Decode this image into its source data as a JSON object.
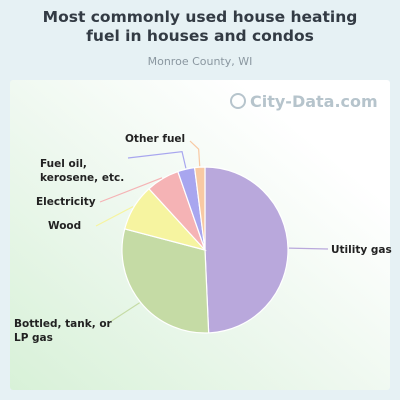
{
  "header": {
    "title_line1": "Most commonly used house heating",
    "title_line2": "fuel in houses and condos",
    "subtitle": "Monroe County, WI"
  },
  "watermark": "City-Data.com",
  "chart_data": {
    "type": "pie",
    "title": "Most commonly used house heating fuel in houses and condos",
    "subtitle": "Monroe County, WI",
    "slices": [
      {
        "label": "Utility gas",
        "value": 49.3,
        "color": "#b9a8dc"
      },
      {
        "label": "Bottled, tank, or LP gas",
        "value": 29.8,
        "color": "#c5dba5"
      },
      {
        "label": "Wood",
        "value": 9.1,
        "color": "#f6f4a0"
      },
      {
        "label": "Electricity",
        "value": 6.5,
        "color": "#f5b3b5"
      },
      {
        "label": "Fuel oil, kerosene, etc.",
        "value": 3.3,
        "color": "#a8a6ef"
      },
      {
        "label": "Other fuel",
        "value": 2.0,
        "color": "#f8c9a3"
      }
    ]
  },
  "labels": {
    "utility_gas": "Utility gas",
    "bottled_1": "Bottled, tank, or",
    "bottled_2": "LP gas",
    "wood": "Wood",
    "electricity": "Electricity",
    "fuel_oil_1": "Fuel oil,",
    "fuel_oil_2": "kerosene, etc.",
    "other_fuel": "Other fuel"
  }
}
